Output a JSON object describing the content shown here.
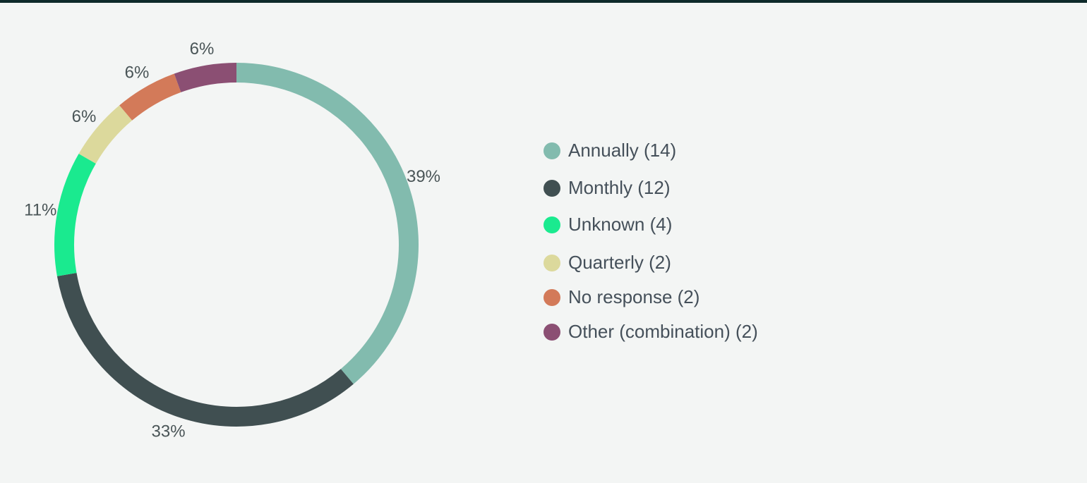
{
  "chart_data": {
    "type": "pie",
    "donut": true,
    "categories": [
      "Annually",
      "Monthly",
      "Unknown",
      "Quarterly",
      "No response",
      "Other (combination)"
    ],
    "values": [
      14,
      12,
      4,
      2,
      2,
      2
    ],
    "percent_labels": [
      "39%",
      "33%",
      "11%",
      "6%",
      "6%",
      "6%"
    ],
    "legend_labels": [
      "Annually (14)",
      "Monthly (12)",
      "Unknown (4)",
      "Quarterly (2)",
      "No response (2)",
      "Other (combination) (2)"
    ],
    "colors": [
      "#82bbae",
      "#404f51",
      "#1aea8f",
      "#dcd99c",
      "#d37a59",
      "#8b4f73"
    ],
    "legend_placement": "right",
    "title": ""
  }
}
